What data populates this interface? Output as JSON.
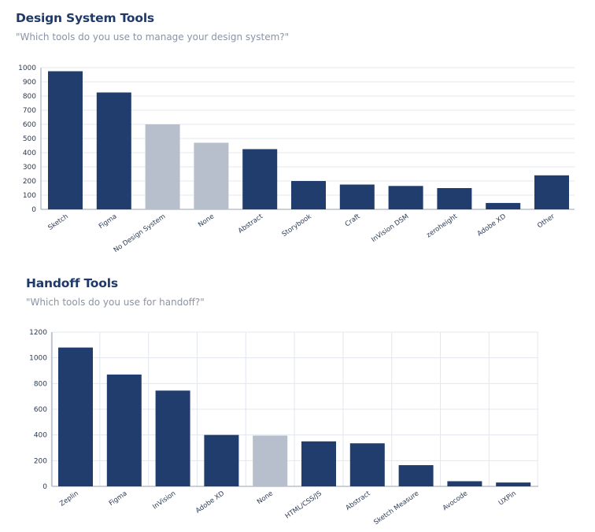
{
  "chart_data": [
    {
      "type": "bar",
      "title": "Design System Tools",
      "subtitle": "\"Which tools do you use to manage your design system?\"",
      "categories": [
        "Sketch",
        "Figma",
        "No Design System",
        "None",
        "Abstract",
        "Storybook",
        "Craft",
        "InVision DSM",
        "zeroheight",
        "Adobe XD",
        "Other"
      ],
      "values": [
        975,
        825,
        600,
        470,
        425,
        200,
        175,
        165,
        150,
        45,
        240
      ],
      "highlight": [
        false,
        false,
        true,
        true,
        false,
        false,
        false,
        false,
        false,
        false,
        false
      ],
      "ylim": [
        0,
        1000
      ],
      "yticks": [
        "0",
        "100",
        "200",
        "300",
        "400",
        "500",
        "600",
        "700",
        "800",
        "900",
        "1000"
      ],
      "grid": true,
      "vertical_grid": false
    },
    {
      "type": "bar",
      "title": "Handoff Tools",
      "subtitle": "\"Which tools do you use for handoff?\"",
      "categories": [
        "Zeplin",
        "Figma",
        "InVision",
        "Adobe XD",
        "None",
        "HTML/CSS/JS",
        "Abstract",
        "Sketch Measure",
        "Avocode",
        "UXPin"
      ],
      "values": [
        1080,
        870,
        745,
        400,
        395,
        350,
        335,
        165,
        40,
        30
      ],
      "highlight": [
        false,
        false,
        false,
        false,
        true,
        false,
        false,
        false,
        false,
        false
      ],
      "ylim": [
        0,
        1200
      ],
      "yticks": [
        "0",
        "200",
        "400",
        "600",
        "800",
        "1000",
        "1200"
      ],
      "grid": true,
      "vertical_grid": true
    }
  ],
  "colors": {
    "bar": "#213d6e",
    "bar_muted": "#b8bfcc",
    "grid": "#e3e7ee",
    "axis": "#9aa3b3",
    "title": "#1f3a68",
    "subtitle": "#8a94a6"
  }
}
